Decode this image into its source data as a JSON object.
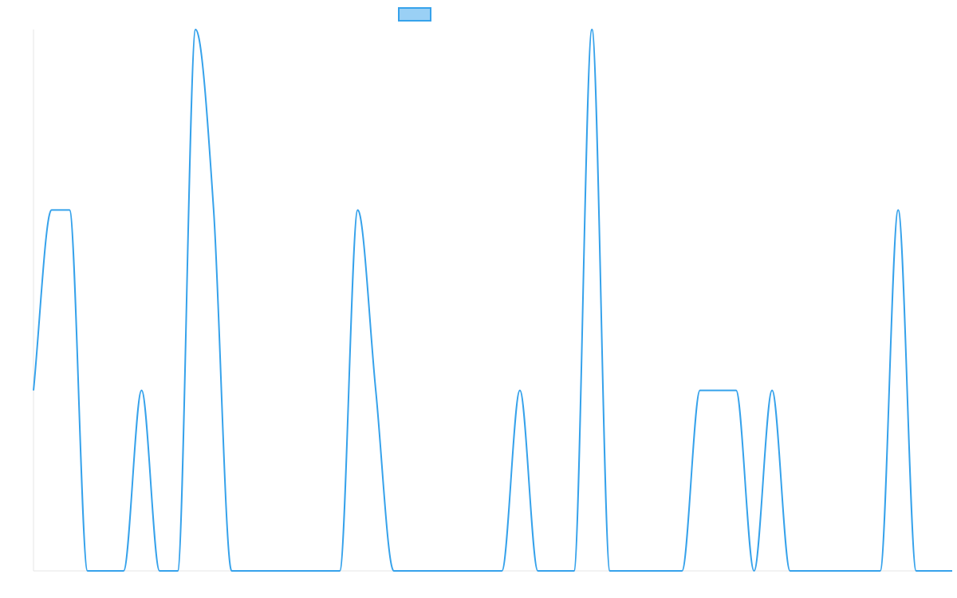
{
  "colors": {
    "line": "#36a2eb",
    "legend_fill": "#9ad0f5",
    "axis": "#e6e6e6"
  },
  "chart_data": {
    "type": "line",
    "title": "",
    "xlabel": "",
    "ylabel": "",
    "grid": false,
    "legend_position": "top",
    "x": [
      0,
      1,
      2,
      3,
      4,
      5,
      6,
      7,
      8,
      9,
      10,
      11,
      12,
      13,
      14,
      15,
      16,
      17,
      18,
      19,
      20,
      21,
      22,
      23,
      24,
      25,
      26,
      27,
      28,
      29,
      30,
      31,
      32,
      33,
      34,
      35,
      36,
      37,
      38,
      39,
      40,
      41,
      42,
      43,
      44,
      45,
      46,
      47,
      48,
      49,
      50,
      51
    ],
    "ylim": [
      0,
      3
    ],
    "series": [
      {
        "name": "",
        "values": [
          1,
          2,
          2,
          0,
          0,
          0,
          1,
          0,
          0,
          3,
          2,
          0,
          0,
          0,
          0,
          0,
          0,
          0,
          2,
          1,
          0,
          0,
          0,
          0,
          0,
          0,
          0,
          1,
          0,
          0,
          0,
          3,
          0,
          0,
          0,
          0,
          0,
          1,
          1,
          1,
          0,
          1,
          0,
          0,
          0,
          0,
          0,
          0,
          2,
          0,
          0,
          0
        ]
      }
    ]
  }
}
